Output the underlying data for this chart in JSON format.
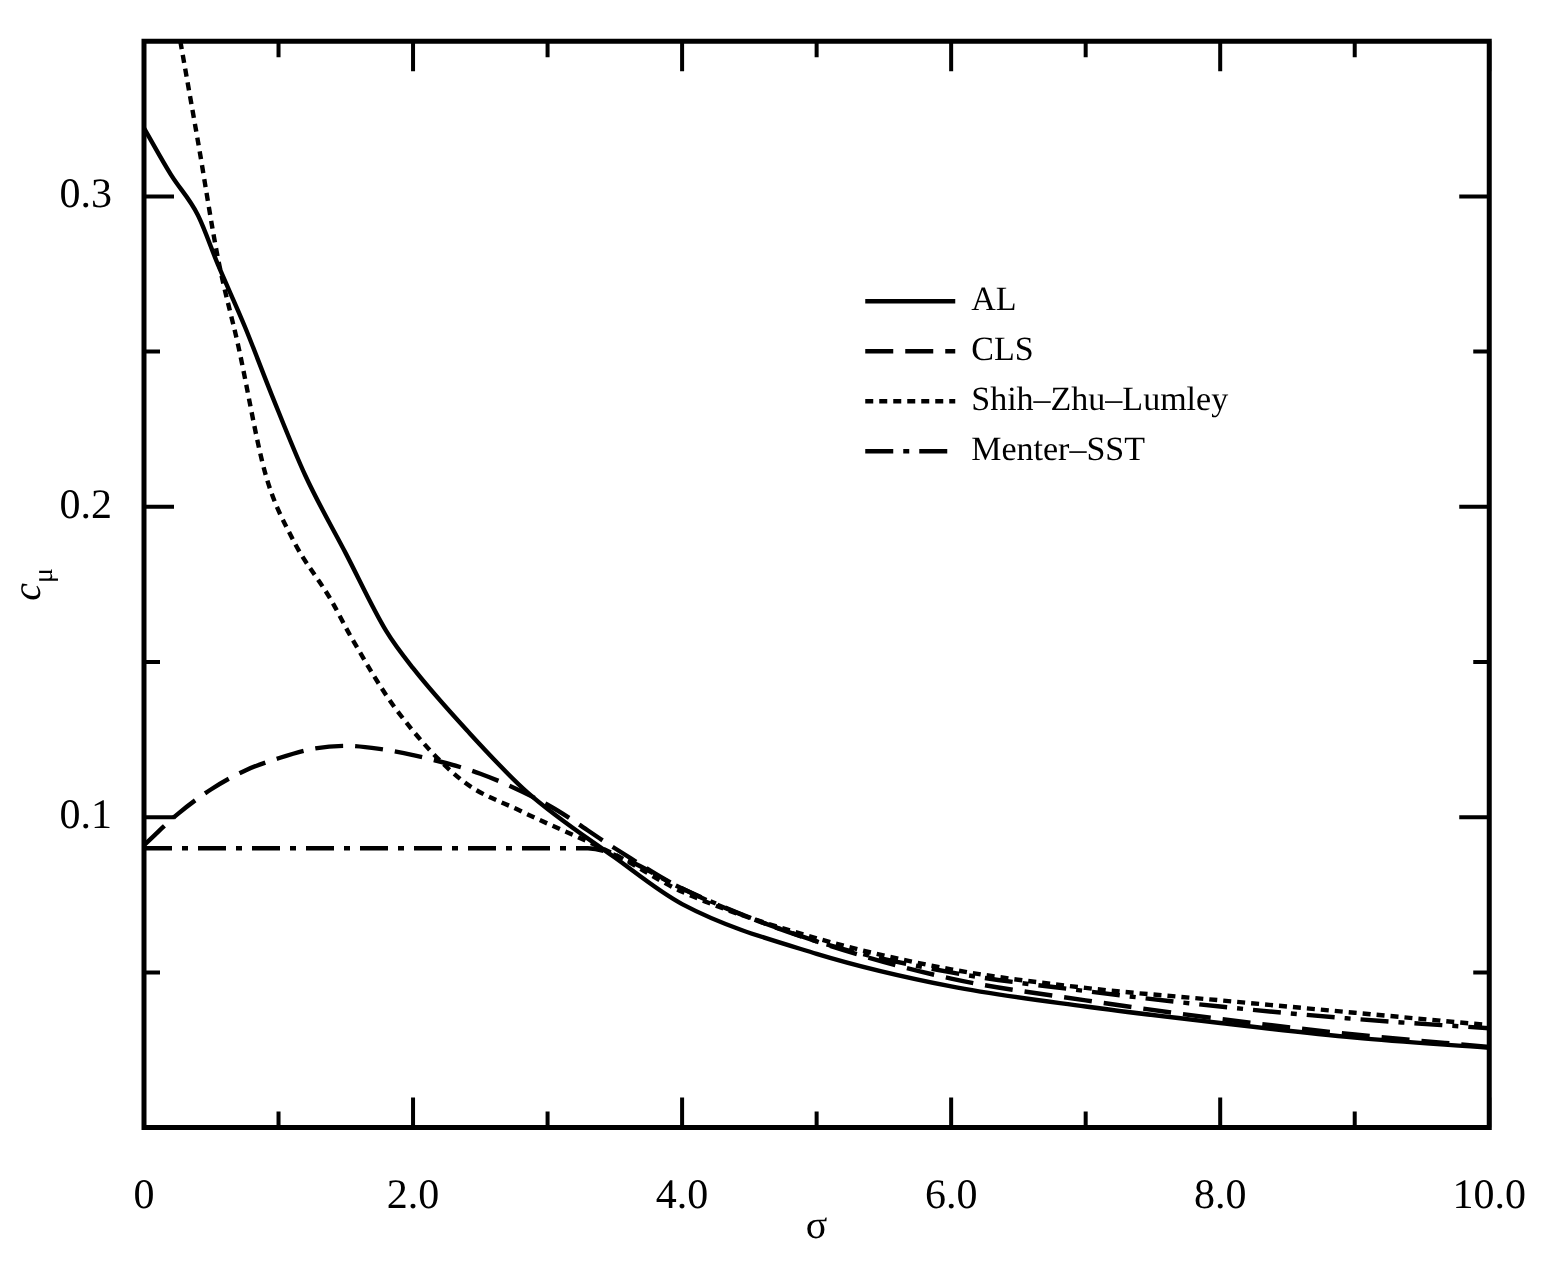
{
  "chart_data": {
    "type": "line",
    "xlabel": "σ",
    "ylabel": "c$_{μ}$",
    "xlim": [
      0,
      10
    ],
    "ylim": [
      0,
      0.35
    ],
    "xticks": [
      0,
      {
        "value": 1,
        "label": null
      },
      {
        "value": 2,
        "label": "2.0"
      },
      {
        "value": 3,
        "label": null
      },
      {
        "value": 4,
        "label": "4.0"
      },
      {
        "value": 5,
        "label": null
      },
      {
        "value": 6,
        "label": "6.0"
      },
      {
        "value": 7,
        "label": null
      },
      {
        "value": 8,
        "label": "8.0"
      },
      {
        "value": 9,
        "label": null
      },
      {
        "value": 10,
        "label": "10.0"
      }
    ],
    "yticks": [
      {
        "value": 0.05,
        "label": null
      },
      0.1,
      {
        "value": 0.15,
        "label": null
      },
      0.2,
      {
        "value": 0.25,
        "label": null
      },
      0.3
    ],
    "grid": false,
    "legend": "top right",
    "marker": "none",
    "series": [
      {
        "name": "AL",
        "color": "#000000",
        "line_style": "solid",
        "x": [
          0,
          0.2,
          0.4,
          0.55,
          0.75,
          0.95,
          1.2,
          1.5,
          1.8,
          2.0,
          2.4,
          2.85,
          3.5,
          4.0,
          5.0,
          6.0,
          7.0,
          8.0,
          9.0,
          10.0
        ],
        "values": [
          0.322,
          0.307,
          0.294,
          0.278,
          0.258,
          0.236,
          0.21,
          0.185,
          0.16,
          0.148,
          0.128,
          0.108,
          0.087,
          0.072,
          0.056,
          0.0455,
          0.039,
          0.0337,
          0.029,
          0.0257
        ]
      },
      {
        "name": "CLS",
        "color": "#000000",
        "line_style": "dashed",
        "x": [
          0,
          0.25,
          0.5,
          0.75,
          1.0,
          1.25,
          1.5,
          1.75,
          2.0,
          2.5,
          3.0,
          3.5,
          4.0,
          5.0,
          6.0,
          7.0,
          8.0,
          9.0,
          10.0
        ],
        "values": [
          0.091,
          0.101,
          0.109,
          0.115,
          0.119,
          0.122,
          0.123,
          0.122,
          0.12,
          0.114,
          0.104,
          0.09,
          0.077,
          0.06,
          0.048,
          0.041,
          0.035,
          0.03,
          0.026
        ]
      },
      {
        "name": "Shih–Zhu–Lumley",
        "color": "#000000",
        "line_style": "dotted",
        "x": [
          0.27,
          0.4,
          0.55,
          0.7,
          0.9,
          1.1,
          1.39,
          1.54,
          1.87,
          2.36,
          2.8,
          3.5,
          4.0,
          5.0,
          6.0,
          7.0,
          8.0,
          9.0,
          10.0
        ],
        "values": [
          0.35,
          0.318,
          0.28,
          0.252,
          0.211,
          0.19,
          0.17,
          0.158,
          0.135,
          0.112,
          0.102,
          0.088,
          0.076,
          0.061,
          0.051,
          0.045,
          0.041,
          0.037,
          0.033
        ]
      },
      {
        "name": "Menter–SST",
        "color": "#000000",
        "line_style": "dashdot",
        "x": [
          0,
          1,
          2,
          3,
          3.3,
          3.6,
          4.0,
          5.0,
          6.0,
          7.0,
          8.0,
          9.0,
          10.0
        ],
        "values": [
          0.09,
          0.09,
          0.09,
          0.09,
          0.09,
          0.086,
          0.077,
          0.06,
          0.05,
          0.044,
          0.039,
          0.035,
          0.032
        ]
      }
    ]
  }
}
